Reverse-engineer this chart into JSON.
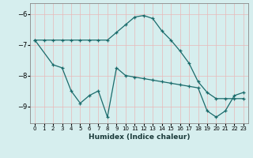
{
  "xlabel": "Humidex (Indice chaleur)",
  "background_color": "#d6eeee",
  "grid_color": "#b8d8d8",
  "line_color": "#1a6b6b",
  "xlim": [
    -0.5,
    23.5
  ],
  "ylim": [
    -9.55,
    -5.65
  ],
  "yticks": [
    -9,
    -8,
    -7,
    -6
  ],
  "xticks": [
    0,
    1,
    2,
    3,
    4,
    5,
    6,
    7,
    8,
    9,
    10,
    11,
    12,
    13,
    14,
    15,
    16,
    17,
    18,
    19,
    20,
    21,
    22,
    23
  ],
  "curve1_x": [
    0,
    1,
    2,
    3,
    4,
    5,
    6,
    7,
    8,
    9,
    10,
    11,
    12,
    13,
    14,
    15,
    16,
    17,
    18,
    19,
    20,
    21,
    22,
    23
  ],
  "curve1_y": [
    -6.85,
    -6.85,
    -6.85,
    -6.85,
    -6.85,
    -6.85,
    -6.85,
    -6.85,
    -6.85,
    -6.6,
    -6.35,
    -6.1,
    -6.05,
    -6.15,
    -6.55,
    -6.85,
    -7.2,
    -7.6,
    -8.2,
    -8.55,
    -8.75,
    -8.75,
    -8.75,
    -8.75
  ],
  "curve2_x": [
    0,
    2,
    3,
    4,
    5,
    6,
    7,
    8,
    9,
    10,
    11,
    12,
    13,
    14,
    15,
    16,
    17,
    18,
    19,
    20,
    21,
    22,
    23
  ],
  "curve2_y": [
    -6.85,
    -7.65,
    -7.75,
    -8.5,
    -8.9,
    -8.65,
    -8.5,
    -9.35,
    -7.75,
    -8.0,
    -8.05,
    -8.1,
    -8.15,
    -8.2,
    -8.25,
    -8.3,
    -8.35,
    -8.4,
    -9.15,
    -9.35,
    -9.15,
    -8.65,
    -8.55
  ]
}
